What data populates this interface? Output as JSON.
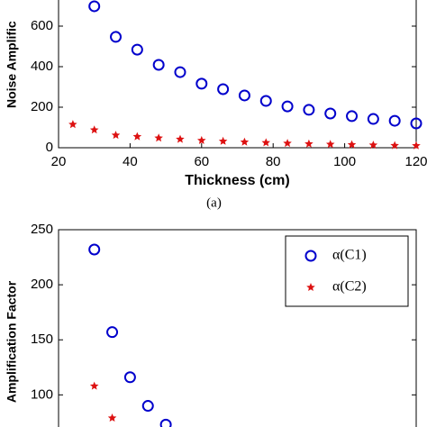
{
  "chart_data": [
    {
      "type": "scatter",
      "ylabel": "Noise Amplific",
      "xlabel": "Thickness (cm)",
      "caption": "(a)",
      "xlim": [
        20,
        120
      ],
      "ylim": [
        0,
        800
      ],
      "xticks": [
        20,
        40,
        60,
        80,
        100,
        120
      ],
      "yticks": [
        0,
        200,
        400,
        600
      ],
      "series": [
        {
          "color": "#0000cc",
          "marker": "circle",
          "x": [
            30,
            36,
            42,
            48,
            54,
            60,
            66,
            72,
            78,
            84,
            90,
            96,
            102,
            108,
            114,
            120
          ],
          "values": [
            698,
            547,
            484,
            409,
            373,
            316,
            289,
            258,
            231,
            204,
            187,
            169,
            156,
            142,
            133,
            120
          ]
        },
        {
          "color": "#dd1111",
          "marker": "star",
          "x": [
            24,
            30,
            36,
            42,
            48,
            54,
            60,
            66,
            72,
            78,
            84,
            90,
            96,
            102,
            108,
            114,
            120
          ],
          "values": [
            115,
            88,
            62,
            55,
            48,
            42,
            36,
            32,
            28,
            25,
            22,
            19,
            17,
            15,
            13,
            11,
            10
          ]
        }
      ]
    },
    {
      "type": "scatter",
      "ylabel": "Amplification Factor",
      "legend": "upper right",
      "xlim": [
        20,
        120
      ],
      "ylim": [
        70,
        250
      ],
      "yticks": [
        100,
        150,
        200,
        250
      ],
      "series": [
        {
          "name": "α(C1)",
          "color": "#0000cc",
          "marker": "circle",
          "x": [
            30,
            35,
            40,
            45,
            50
          ],
          "values": [
            232,
            157,
            116,
            90,
            73
          ]
        },
        {
          "name": "α(C2)",
          "color": "#dd1111",
          "marker": "star",
          "x": [
            30,
            35
          ],
          "values": [
            108,
            79
          ]
        }
      ]
    }
  ]
}
